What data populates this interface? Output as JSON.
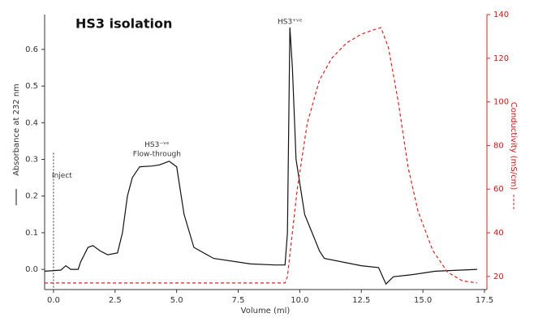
{
  "chart_data": {
    "type": "line",
    "title": "HS3 isolation",
    "x_label": "Volume (ml)",
    "y_label": "Absorbance at 232 nm",
    "y2_label": "Conductivity (mS/cm)",
    "xlim": [
      -0.36,
      17.6
    ],
    "xticks": [
      {
        "value": 0,
        "label": "0.0"
      },
      2.5,
      {
        "value": 5,
        "label": "5.0"
      },
      7.5,
      {
        "value": 10,
        "label": "10.0"
      },
      12.5,
      {
        "value": 15,
        "label": "15.0"
      },
      17.5
    ],
    "ylim": [
      -0.055,
      0.695
    ],
    "yticks": [
      {
        "value": 0,
        "label": "0.0"
      },
      0.1,
      0.2,
      0.3,
      0.4,
      0.5,
      0.6
    ],
    "y2lim": [
      14,
      140
    ],
    "y2ticks": [
      20,
      40,
      60,
      80,
      100,
      120,
      140
    ],
    "annotations": [
      {
        "text": "Inject",
        "x": 0,
        "y": 0.3
      },
      {
        "text": "HS3⁻ᵛᵉ",
        "x": 4.2,
        "y": 0.34
      },
      {
        "text": "Flow-through",
        "x": 4.2,
        "y": 0.315
      },
      {
        "text": "HS3⁺ᵛᵉ",
        "x": 9.6,
        "y": 0.675
      }
    ],
    "series": [
      {
        "name": "Absorbance",
        "color": "#111111",
        "style": "solid",
        "x": [
          -0.36,
          0.3,
          0.5,
          0.7,
          1.0,
          1.1,
          1.4,
          1.6,
          1.9,
          2.2,
          2.6,
          2.8,
          3.0,
          3.2,
          3.5,
          4.0,
          4.3,
          4.7,
          5.0,
          5.3,
          5.7,
          6.5,
          8.0,
          9.0,
          9.4,
          9.5,
          9.6,
          9.7,
          9.85,
          10.2,
          10.8,
          11.0,
          12.5,
          13.2,
          13.5,
          13.8,
          14.5,
          15.5,
          17.2
        ],
        "values": [
          -0.005,
          -0.002,
          0.01,
          0.0,
          0.0,
          0.02,
          0.06,
          0.065,
          0.05,
          0.04,
          0.045,
          0.1,
          0.2,
          0.25,
          0.28,
          0.282,
          0.285,
          0.295,
          0.28,
          0.15,
          0.06,
          0.03,
          0.015,
          0.012,
          0.012,
          0.1,
          0.66,
          0.55,
          0.3,
          0.15,
          0.05,
          0.03,
          0.01,
          0.005,
          -0.04,
          -0.02,
          -0.015,
          -0.005,
          0.0
        ]
      },
      {
        "name": "Conductivity",
        "color": "#dd2222",
        "style": "dashed",
        "axis": "y2",
        "x": [
          -0.36,
          9.4,
          9.5,
          9.9,
          10.3,
          10.8,
          11.3,
          11.9,
          12.5,
          13.0,
          13.3,
          13.6,
          14.0,
          14.4,
          14.8,
          15.4,
          16.0,
          16.6,
          17.2
        ],
        "values": [
          17,
          17,
          20,
          60,
          90,
          110,
          120,
          127,
          131,
          133,
          134,
          125,
          100,
          70,
          50,
          32,
          22,
          18,
          17
        ]
      }
    ]
  }
}
